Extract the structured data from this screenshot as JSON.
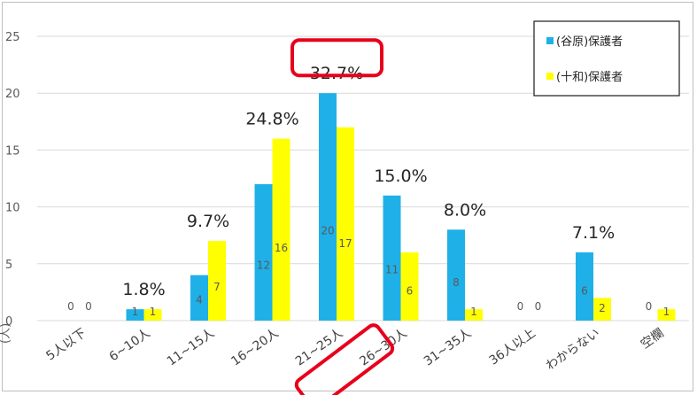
{
  "chart_data": {
    "type": "bar",
    "categories": [
      "5人以下",
      "6~10人",
      "11~15人",
      "16~20人",
      "21~25人",
      "26~30人",
      "31~35人",
      "36人以上",
      "わからない",
      "空欄"
    ],
    "series": [
      {
        "name": "(谷原)保護者",
        "values": [
          0,
          1,
          4,
          12,
          20,
          11,
          8,
          0,
          6,
          0
        ],
        "color": "#1fb0e8"
      },
      {
        "name": "(十和)保護者",
        "values": [
          0,
          1,
          7,
          16,
          17,
          6,
          1,
          0,
          2,
          1
        ],
        "color": "#ffff00"
      }
    ],
    "value_labels": [
      [
        "0",
        "1",
        "4",
        "12",
        "20",
        "11",
        "8",
        "0",
        "6",
        "0"
      ],
      [
        "0",
        "1",
        "7",
        "16",
        "17",
        "6",
        "1",
        "0",
        "2",
        "1"
      ]
    ],
    "percent_labels": [
      "",
      "1.8%",
      "9.7%",
      "24.8%",
      "32.7%",
      "15.0%",
      "8.0%",
      "",
      "7.1%",
      ""
    ],
    "highlight_category_index": 4,
    "highlight_color": "#e8001c",
    "ylim": [
      0,
      25
    ],
    "yticks": [
      0,
      5,
      10,
      15,
      20,
      25
    ],
    "ylabel": "(人)",
    "grid": true,
    "legend_position": "top-right"
  }
}
